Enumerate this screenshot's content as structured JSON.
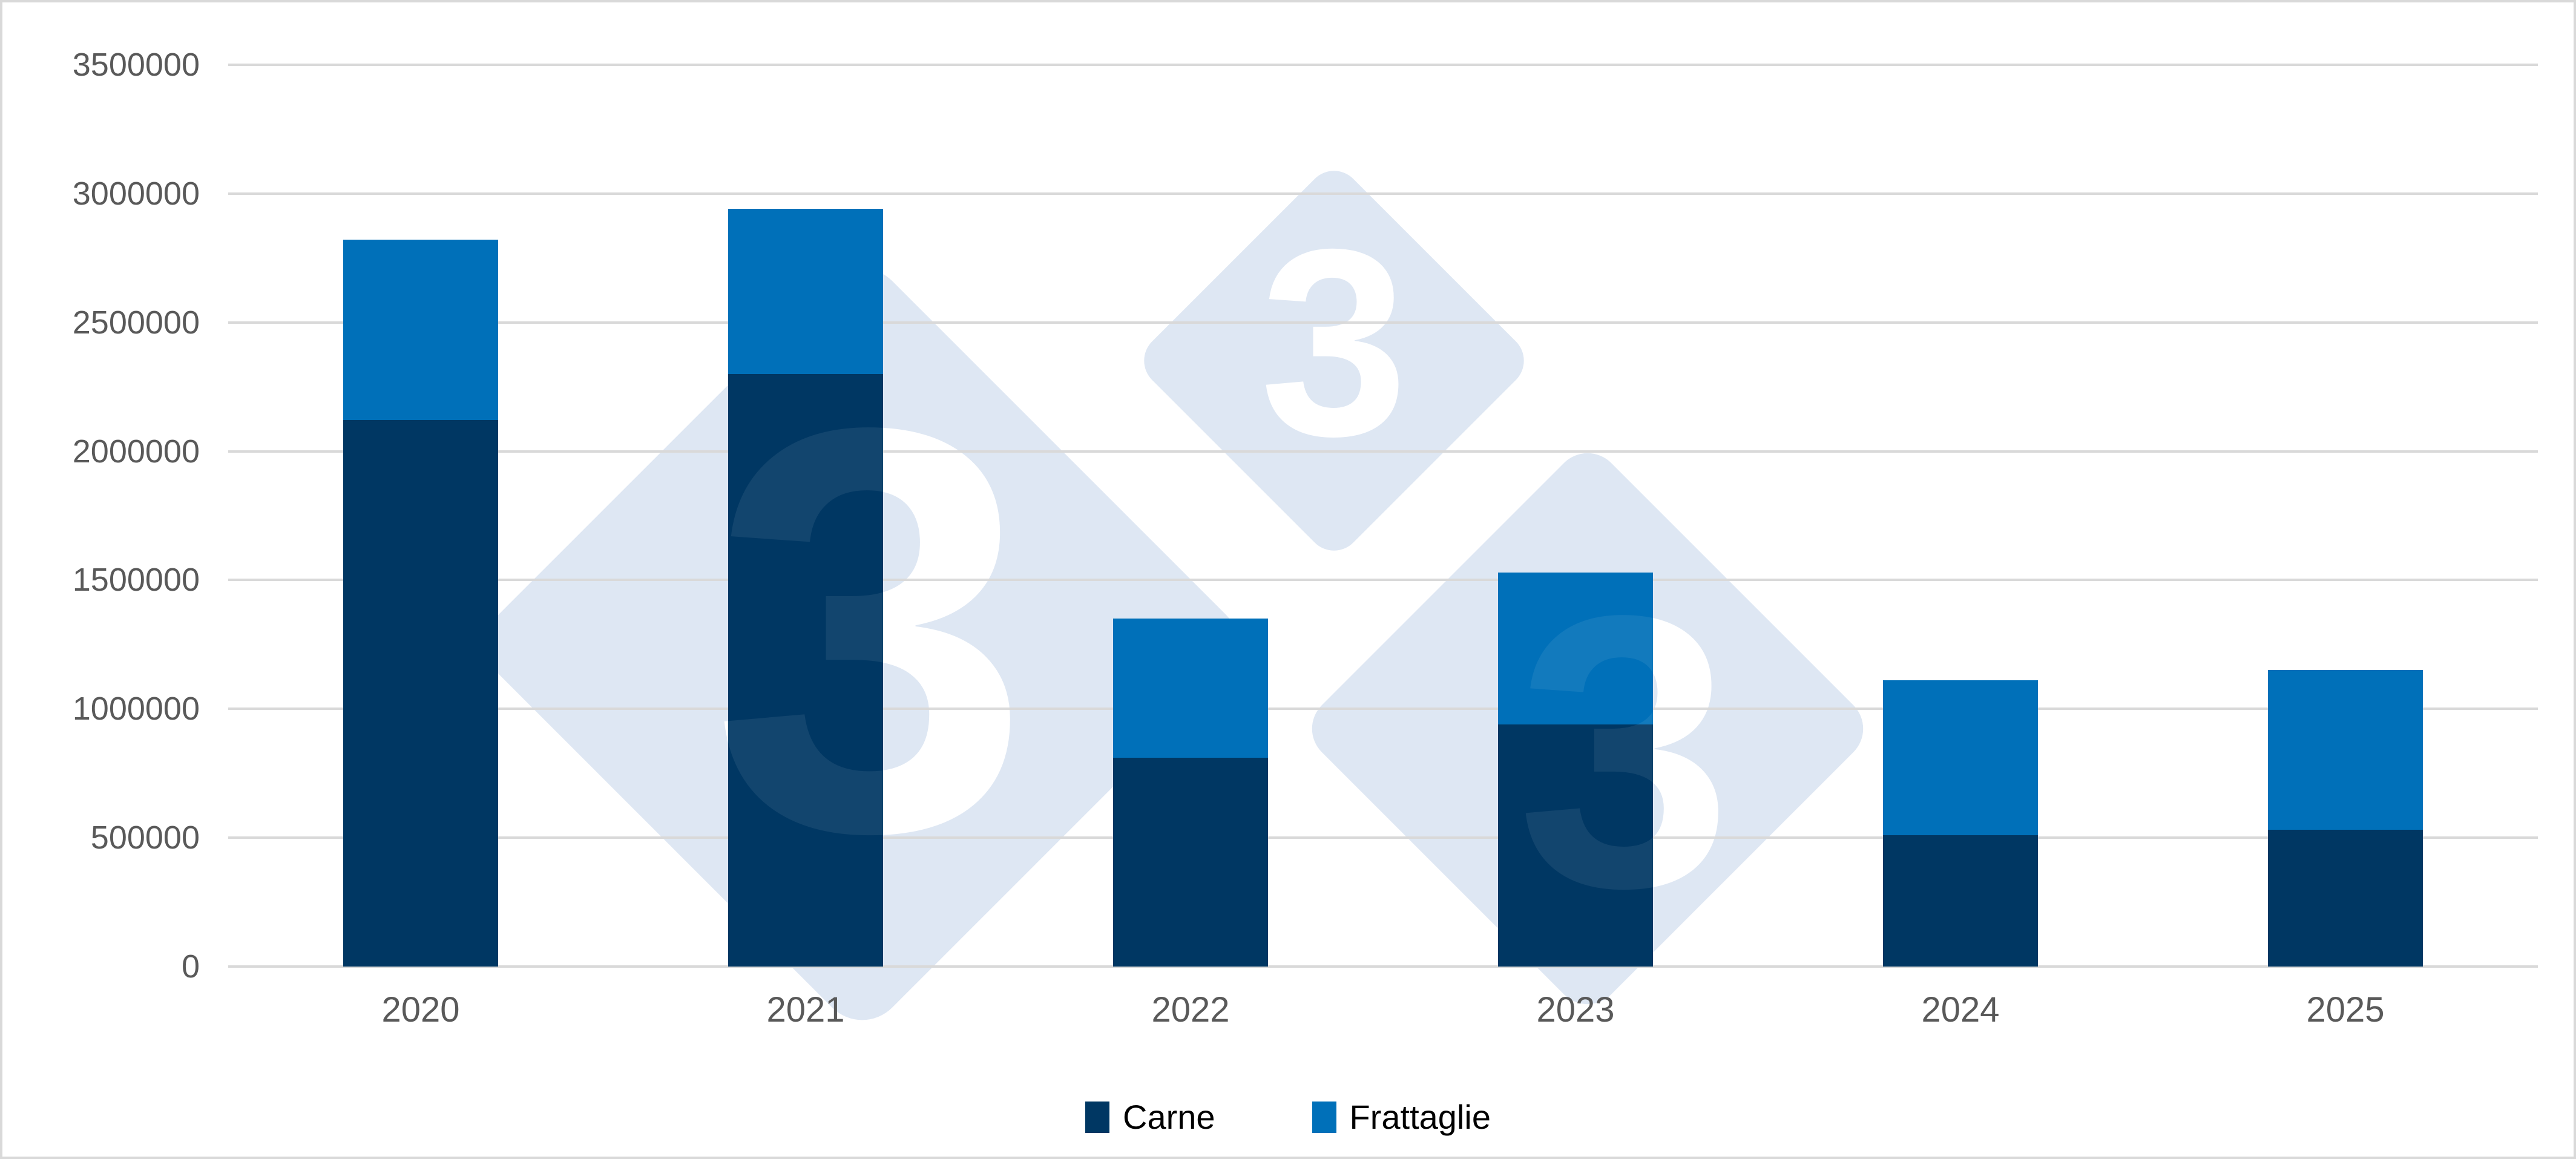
{
  "chart_data": {
    "type": "bar",
    "stacked": true,
    "title": "",
    "categories": [
      "2020",
      "2021",
      "2022",
      "2023",
      "2024",
      "2025"
    ],
    "series": [
      {
        "name": "Carne",
        "color": "#003763",
        "values": [
          2120000,
          2300000,
          810000,
          940000,
          510000,
          530000
        ]
      },
      {
        "name": "Frattaglie",
        "color": "#0070B9",
        "values": [
          700000,
          640000,
          540000,
          590000,
          600000,
          620000
        ]
      }
    ],
    "y_axis": {
      "min": 0,
      "max": 3500000,
      "step": 500000,
      "tick_labels": [
        "0",
        "500000",
        "1000000",
        "1500000",
        "2000000",
        "2500000",
        "3000000",
        "3500000"
      ]
    },
    "grid": true,
    "legend_position": "bottom",
    "colors": {
      "gridline": "#d9d9d9",
      "axis_label": "#595959",
      "legend_text": "#000000",
      "background": "#ffffff",
      "frame_border": "#d9d9d9"
    }
  },
  "watermark": {
    "glyph": "3",
    "diamond_color": "#dee7f3",
    "glyph_color": "#ffffff",
    "ghost_glyph_color": "rgba(255,255,255,0.07)"
  }
}
